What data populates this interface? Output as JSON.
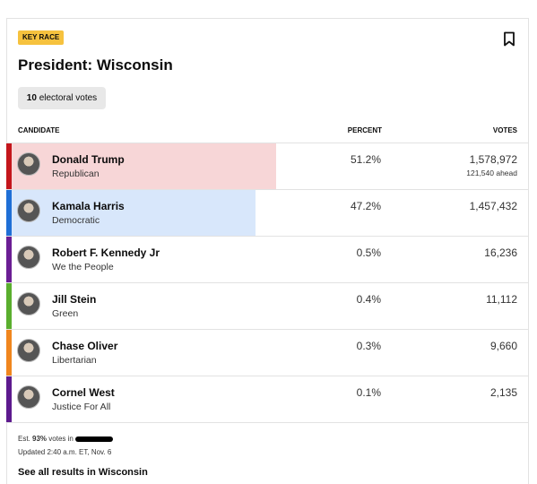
{
  "badge": "KEY RACE",
  "title": "President: Wisconsin",
  "electoral": {
    "count": "10",
    "text": "electoral votes"
  },
  "headers": [
    "CANDIDATE",
    "PERCENT",
    "VOTES"
  ],
  "rows": [
    {
      "name": "Donald Trump",
      "party": "Republican",
      "percent": 51.2,
      "percent_label": "51.2%",
      "votes": "1,578,972",
      "ahead": "121,540 ahead",
      "color": "#c4161c",
      "bg": "#f7d6d7"
    },
    {
      "name": "Kamala Harris",
      "party": "Democratic",
      "percent": 47.2,
      "percent_label": "47.2%",
      "votes": "1,457,432",
      "color": "#1f6fd6",
      "bg": "#d8e7fb"
    },
    {
      "name": "Robert F. Kennedy Jr",
      "party": "We the People",
      "percent": 0.5,
      "percent_label": "0.5%",
      "votes": "16,236",
      "color": "#6b1e94"
    },
    {
      "name": "Jill Stein",
      "party": "Green",
      "percent": 0.4,
      "percent_label": "0.4%",
      "votes": "11,112",
      "color": "#5aae2e"
    },
    {
      "name": "Chase Oliver",
      "party": "Libertarian",
      "percent": 0.3,
      "percent_label": "0.3%",
      "votes": "9,660",
      "color": "#f0861e"
    },
    {
      "name": "Cornel West",
      "party": "Justice For All",
      "percent": 0.1,
      "percent_label": "0.1%",
      "votes": "2,135",
      "color": "#5d1a8e"
    }
  ],
  "footer": {
    "est": "Est.",
    "pct": "93%",
    "votes_in": "votes in",
    "updated": "Updated 2:40 a.m. ET, Nov. 6",
    "link": "See all results in Wisconsin"
  }
}
